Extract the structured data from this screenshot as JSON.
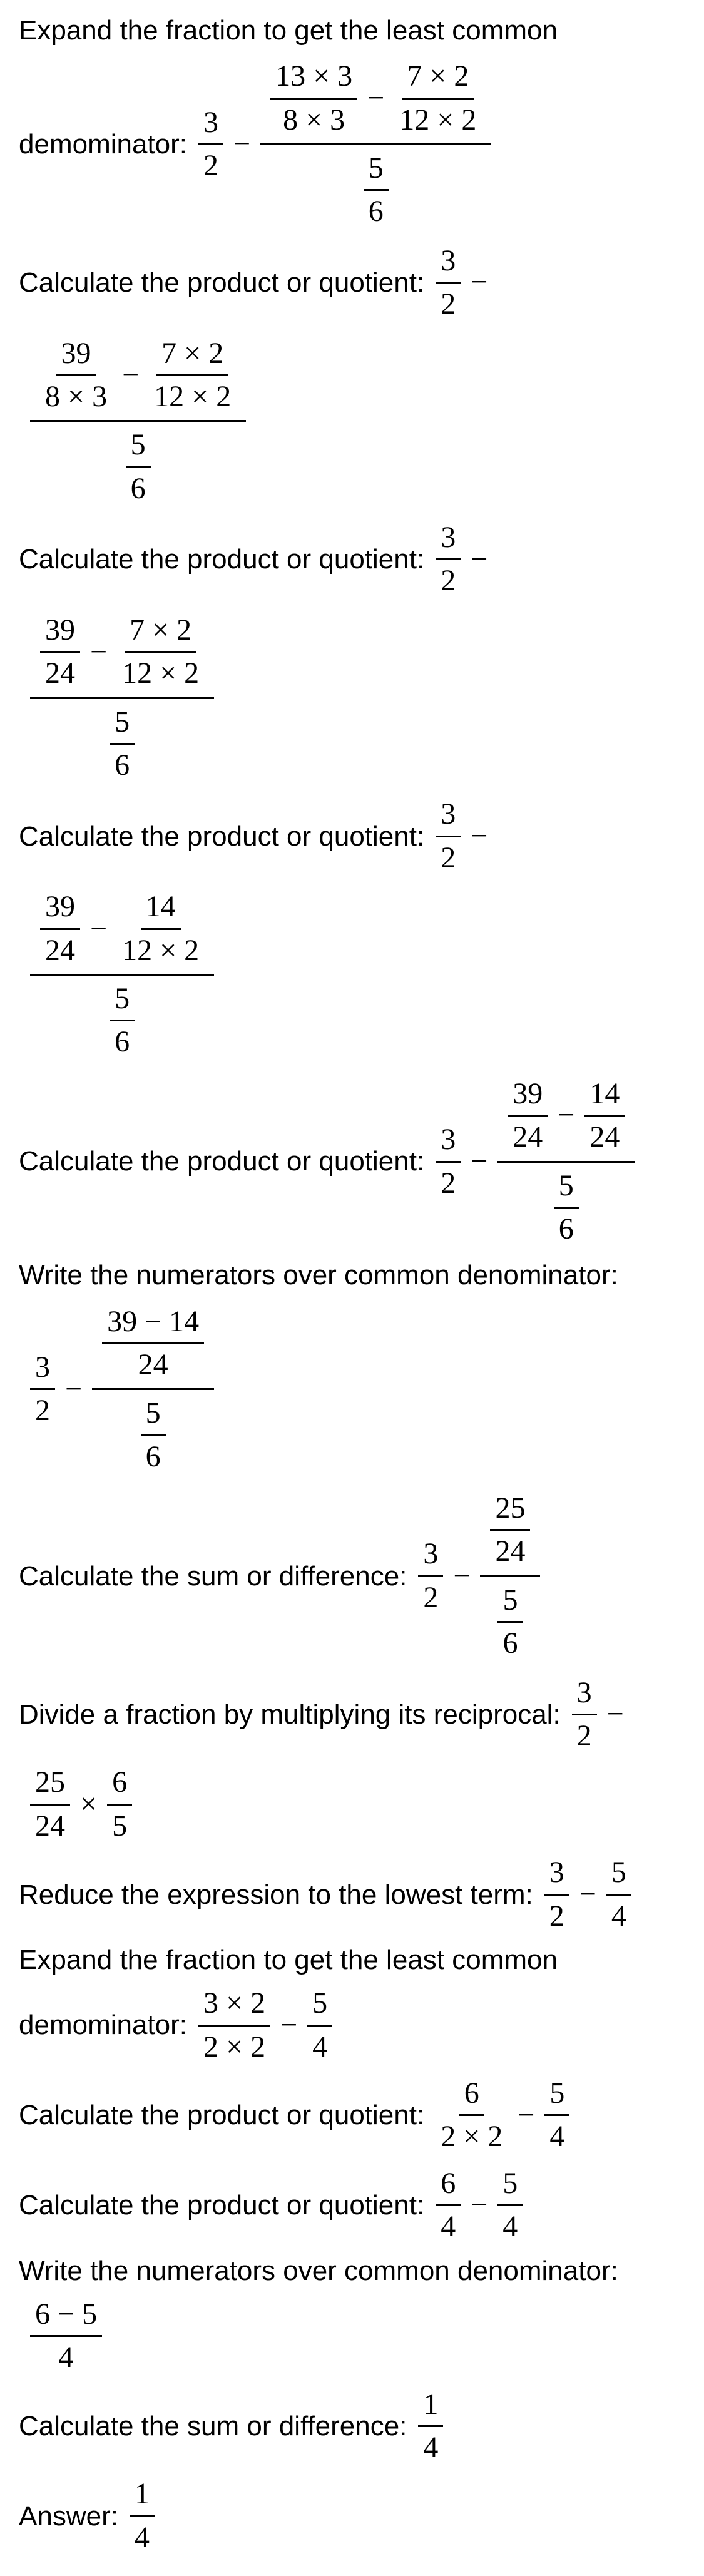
{
  "steps": {
    "s1": {
      "text_a": "Expand the fraction to get the least common",
      "text_b": "demominator: "
    },
    "s2": {
      "text": "Calculate the product or quotient: "
    },
    "s3": {
      "text": "Calculate the product or quotient: "
    },
    "s4": {
      "text": "Calculate the product or quotient: "
    },
    "s5": {
      "text": "Calculate the product or quotient: "
    },
    "s6": {
      "text": "Write the numerators over common denominator:"
    },
    "s7": {
      "text": "Calculate the sum or difference: "
    },
    "s8": {
      "text": "Divide a fraction by multiplying its reciprocal: "
    },
    "s9": {
      "text": "Reduce the expression to the lowest term: "
    },
    "s10": {
      "text_a": "Expand the fraction to get the least common",
      "text_b": "demominator: "
    },
    "s11": {
      "text": "Calculate the product or quotient: "
    },
    "s12": {
      "text": "Calculate the product or quotient: "
    },
    "s13": {
      "text": "Write the numerators over common denominator:"
    },
    "s14": {
      "text": "Calculate the sum or difference: "
    },
    "answer_label": "Answer: "
  },
  "math": {
    "n3": "3",
    "n2": "2",
    "n13": "13",
    "n8": "8",
    "n7": "7",
    "n12": "12",
    "n5": "5",
    "n6": "6",
    "n39": "39",
    "n24": "24",
    "n14": "14",
    "n25": "25",
    "n4": "4",
    "n1": "1",
    "expr_39m14": "39 − 14",
    "expr_6m5": "6 − 5",
    "times": "×",
    "minus": "−"
  },
  "style": {
    "text_color": "#000000",
    "background": "#ffffff",
    "fontsize_text": 44,
    "fontsize_math": 48,
    "font_family_text": "Arial, sans-serif",
    "font_family_math": "Times New Roman, serif"
  }
}
